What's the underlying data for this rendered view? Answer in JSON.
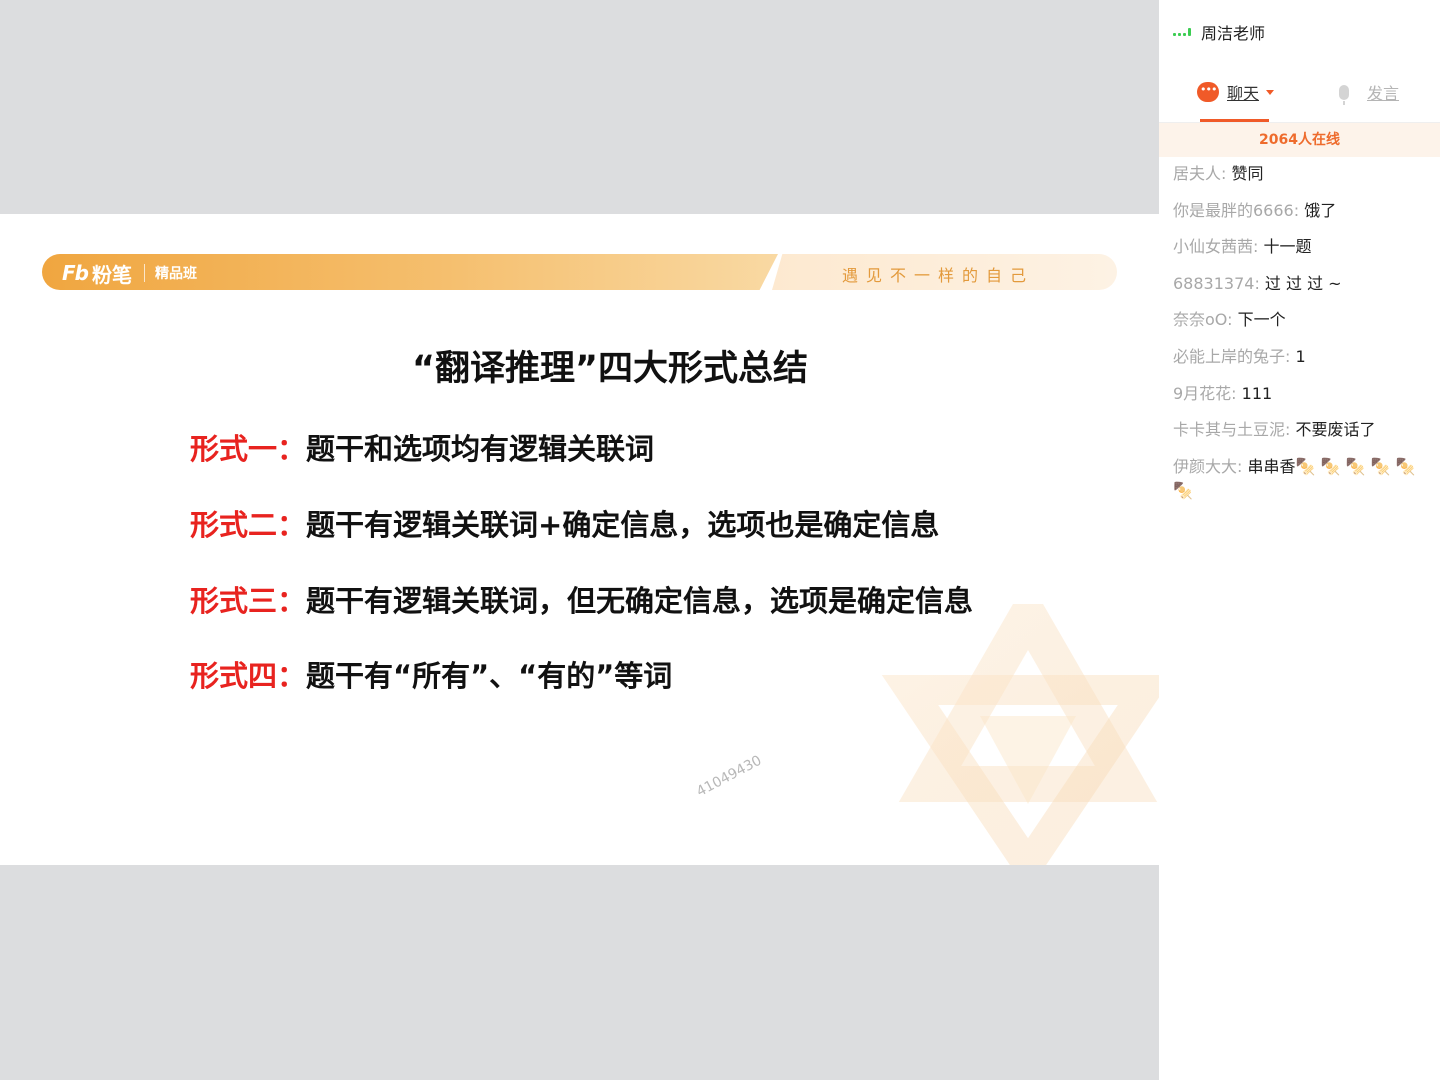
{
  "slide": {
    "logo_mark": "Fb",
    "logo_text": "粉笔",
    "logo_sub": "精品班",
    "slogan": "遇见不一样的自己",
    "title": "“翻译推理”四大形式总结",
    "items": [
      {
        "label": "形式一：",
        "text": "题干和选项均有逻辑关联词"
      },
      {
        "label": "形式二：",
        "text": "题干有逻辑关联词+确定信息，选项也是确定信息"
      },
      {
        "label": "形式三：",
        "text": "题干有逻辑关联词，但无确定信息，选项是确定信息"
      },
      {
        "label": "形式四：",
        "text": "题干有“所有”、“有的”等词"
      }
    ],
    "watermark": "41049430"
  },
  "panel": {
    "teacher": "周洁老师",
    "tab_chat": "聊天",
    "tab_speak": "发言",
    "online": "2064人在线",
    "messages": [
      {
        "name": "居夫人:",
        "text": "赞同"
      },
      {
        "name": "你是最胖的6666:",
        "text": "饿了"
      },
      {
        "name": "小仙女茜茜:",
        "text": "十一题"
      },
      {
        "name": "68831374:",
        "text": "过 过 过 ~"
      },
      {
        "name": "奈奈oO:",
        "text": "下一个"
      },
      {
        "name": "必能上岸的兔子:",
        "text": "1"
      },
      {
        "name": "9月花花:",
        "text": "111"
      },
      {
        "name": "卡卡其与土豆泥:",
        "text": "不要废话了"
      },
      {
        "name": "伊颜大大:",
        "text": "串串香🍢 🍢 🍢 🍢 🍢 🍢"
      }
    ]
  },
  "colors": {
    "accent": "#f05a28",
    "label_red": "#e8231f",
    "signal_green": "#3ccd52"
  }
}
